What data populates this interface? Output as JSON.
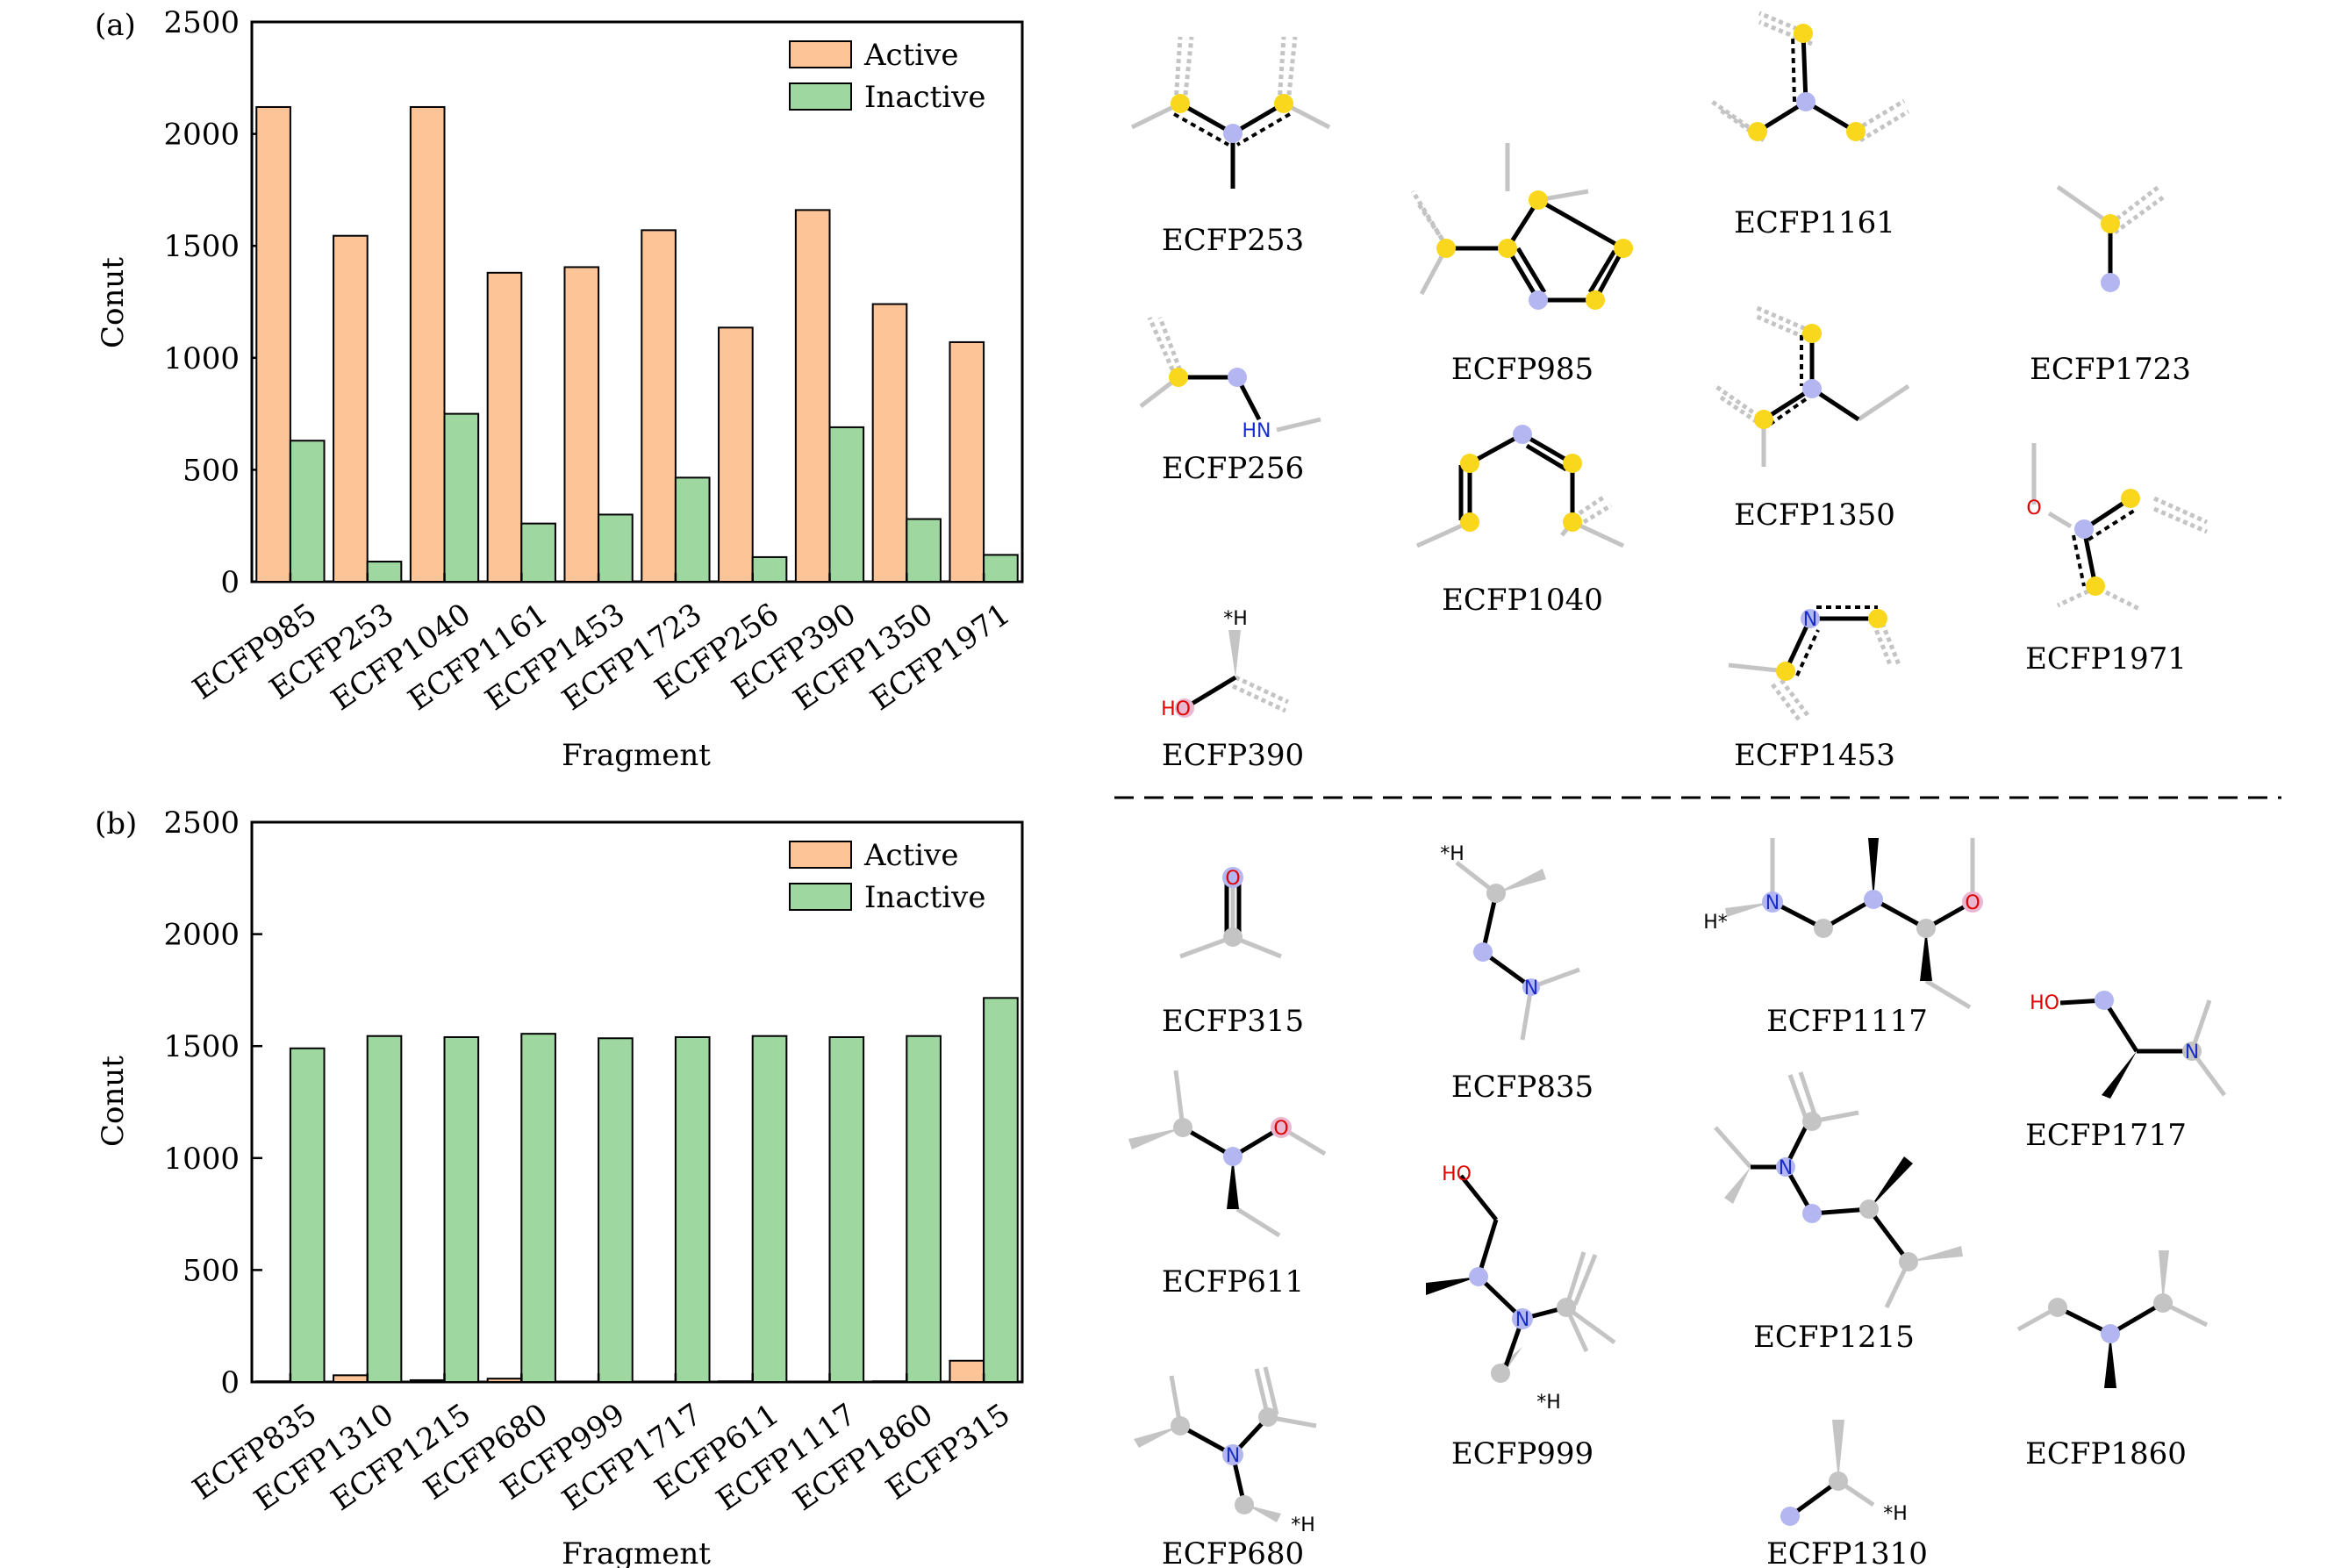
{
  "chart_data": [
    {
      "type": "bar",
      "panel_label": "(a)",
      "xlabel": "Fragment",
      "ylabel": "Conut",
      "ylim": [
        0,
        2500
      ],
      "yticks": [
        "0",
        "500",
        "1000",
        "1500",
        "2000",
        "2500"
      ],
      "legend_position": "top-right",
      "categories": [
        "ECFP985",
        "ECFP253",
        "ECFP1040",
        "ECFP1161",
        "ECFP1453",
        "ECFP1723",
        "ECFP256",
        "ECFP390",
        "ECFP1350",
        "ECFP1971"
      ],
      "series": [
        {
          "name": "Active",
          "color": "#FDC597",
          "values": [
            2120,
            1545,
            2120,
            1380,
            1405,
            1570,
            1135,
            1660,
            1240,
            1070
          ]
        },
        {
          "name": "Inactive",
          "color": "#9ED8A0",
          "values": [
            630,
            90,
            750,
            260,
            300,
            465,
            110,
            690,
            280,
            120
          ]
        }
      ]
    },
    {
      "type": "bar",
      "panel_label": "(b)",
      "xlabel": "Fragment",
      "ylabel": "Conut",
      "ylim": [
        0,
        2500
      ],
      "yticks": [
        "0",
        "500",
        "1000",
        "1500",
        "2000",
        "2500"
      ],
      "legend_position": "top-right",
      "categories": [
        "ECFP835",
        "ECFP1310",
        "ECFP1215",
        "ECFP680",
        "ECFP999",
        "ECFP1717",
        "ECFP611",
        "ECFP1117",
        "ECFP1860",
        "ECFP315"
      ],
      "series": [
        {
          "name": "Active",
          "color": "#FDC597",
          "values": [
            3,
            30,
            8,
            15,
            0,
            0,
            3,
            0,
            3,
            95
          ]
        },
        {
          "name": "Inactive",
          "color": "#9ED8A0",
          "values": [
            1490,
            1545,
            1540,
            1555,
            1535,
            1540,
            1545,
            1540,
            1545,
            1715
          ]
        }
      ]
    }
  ],
  "fragments_top": [
    {
      "id": "ECFP253",
      "name": "ECFP253"
    },
    {
      "id": "ECFP985",
      "name": "ECFP985"
    },
    {
      "id": "ECFP1161",
      "name": "ECFP1161"
    },
    {
      "id": "ECFP1723",
      "name": "ECFP1723"
    },
    {
      "id": "ECFP256",
      "name": "ECFP256",
      "atoms": [
        "HN"
      ]
    },
    {
      "id": "ECFP1040",
      "name": "ECFP1040"
    },
    {
      "id": "ECFP1350",
      "name": "ECFP1350"
    },
    {
      "id": "ECFP1971",
      "name": "ECFP1971",
      "atoms": [
        "O"
      ]
    },
    {
      "id": "ECFP390",
      "name": "ECFP390",
      "atoms": [
        "*H",
        "HO"
      ]
    },
    {
      "id": "ECFP1453",
      "name": "ECFP1453",
      "atoms": [
        "N"
      ]
    }
  ],
  "fragments_bottom": [
    {
      "id": "ECFP315",
      "name": "ECFP315",
      "atoms": [
        "O"
      ]
    },
    {
      "id": "ECFP835",
      "name": "ECFP835",
      "atoms": [
        "*H",
        "N"
      ]
    },
    {
      "id": "ECFP1117",
      "name": "ECFP1117",
      "atoms": [
        "H*",
        "N",
        "O"
      ]
    },
    {
      "id": "ECFP1717",
      "name": "ECFP1717",
      "atoms": [
        "HO",
        "N"
      ]
    },
    {
      "id": "ECFP611",
      "name": "ECFP611",
      "atoms": [
        "O"
      ]
    },
    {
      "id": "ECFP999",
      "name": "ECFP999",
      "atoms": [
        "HO",
        "N",
        "*H"
      ]
    },
    {
      "id": "ECFP1215",
      "name": "ECFP1215",
      "atoms": [
        "N"
      ]
    },
    {
      "id": "ECFP1860",
      "name": "ECFP1860"
    },
    {
      "id": "ECFP680",
      "name": "ECFP680",
      "atoms": [
        "N",
        "*H"
      ]
    },
    {
      "id": "ECFP1310",
      "name": "ECFP1310",
      "atoms": [
        "*H"
      ]
    }
  ],
  "colors": {
    "active": "#FDC597",
    "inactive": "#9ED8A0",
    "aromatic_atom": "#F9D71C",
    "nitrogen_atom": "#B3B6F0",
    "grey_atom": "#C4C4C4",
    "oxygen_text": "#E00000",
    "nitrogen_text": "#1A2EC8"
  }
}
